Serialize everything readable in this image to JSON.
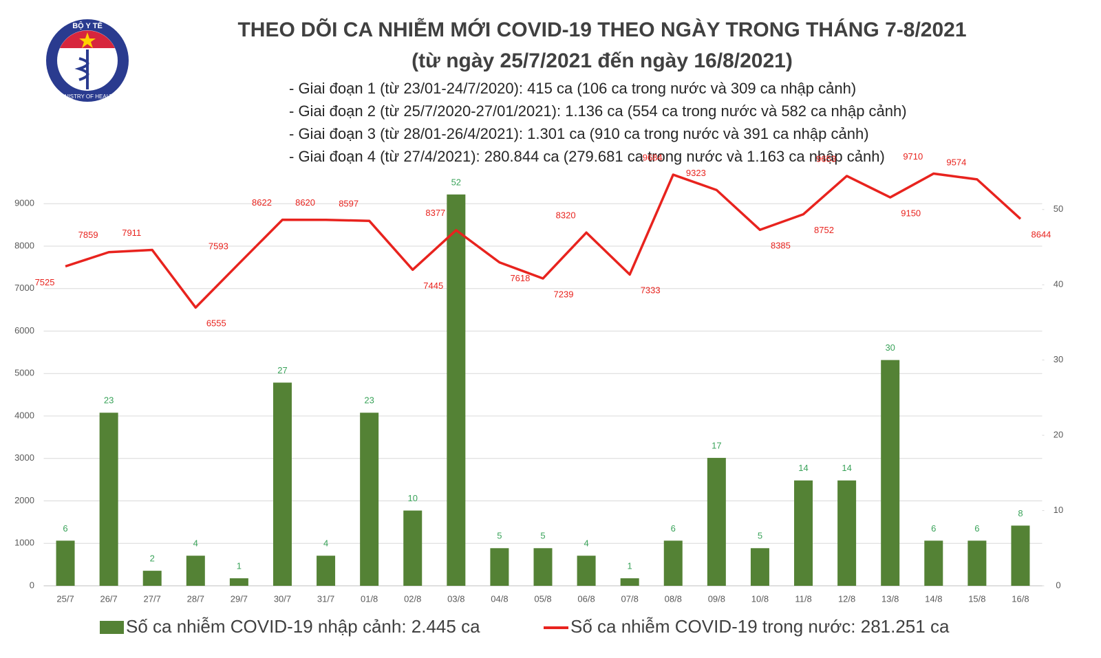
{
  "logo": {
    "top": "BỘ Y TẾ",
    "bottom": "MINISTRY OF HEALTH"
  },
  "chart_data": {
    "type": "bar-line",
    "title": "THEO DÕI CA NHIỄM MỚI COVID-19 THEO NGÀY TRONG THÁNG 7-8/2021",
    "subtitle": "(từ ngày 25/7/2021 đến ngày 16/8/2021)",
    "annotations": [
      "- Giai đoạn 1 (từ 23/01-24/7/2020): 415 ca (106 ca trong nước và 309 ca nhập cảnh)",
      "- Giai đoạn 2 (từ 25/7/2020-27/01/2021): 1.136 ca (554 ca trong nước và 582 ca nhập cảnh)",
      "- Giai đoạn 3 (từ 28/01-26/4/2021): 1.301 ca (910 ca trong nước và 391 ca nhập cảnh)",
      "- Giai đoạn 4 (từ 27/4/2021): 280.844 ca (279.681 ca trong nước và 1.163 ca nhập cảnh)"
    ],
    "categories": [
      "25/7",
      "26/7",
      "27/7",
      "28/7",
      "29/7",
      "30/7",
      "31/7",
      "01/8",
      "02/8",
      "03/8",
      "04/8",
      "05/8",
      "06/8",
      "07/8",
      "08/8",
      "09/8",
      "10/8",
      "11/8",
      "12/8",
      "13/8",
      "14/8",
      "15/8",
      "16/8"
    ],
    "series": [
      {
        "name": "Số ca nhiễm COVID-19 nhập cảnh: 2.445 ca",
        "type": "bar",
        "axis": "y2",
        "color": "#548235",
        "label_color": "#3aa35a",
        "values": [
          6,
          23,
          2,
          4,
          1,
          27,
          4,
          23,
          10,
          52,
          5,
          5,
          4,
          1,
          6,
          17,
          5,
          14,
          14,
          30,
          6,
          6,
          8
        ]
      },
      {
        "name": "Số ca nhiễm COVID-19 trong nước: 281.251 ca",
        "type": "line",
        "color": "#e8231e",
        "label_color": "#e8231e",
        "values": [
          7525,
          7859,
          7911,
          6555,
          7593,
          8622,
          8620,
          8597,
          7445,
          8377,
          7618,
          7239,
          8320,
          7333,
          9684,
          9323,
          8385,
          8752,
          9653,
          9150,
          9710,
          9574,
          8644
        ]
      }
    ],
    "ylim": [
      0,
      9750
    ],
    "yticks": [
      0,
      1000,
      2000,
      3000,
      4000,
      5000,
      6000,
      7000,
      8000,
      9000
    ],
    "y2lim": [
      0,
      55
    ],
    "y2ticks": [
      0,
      10,
      20,
      30,
      40,
      50
    ],
    "grid": true
  }
}
